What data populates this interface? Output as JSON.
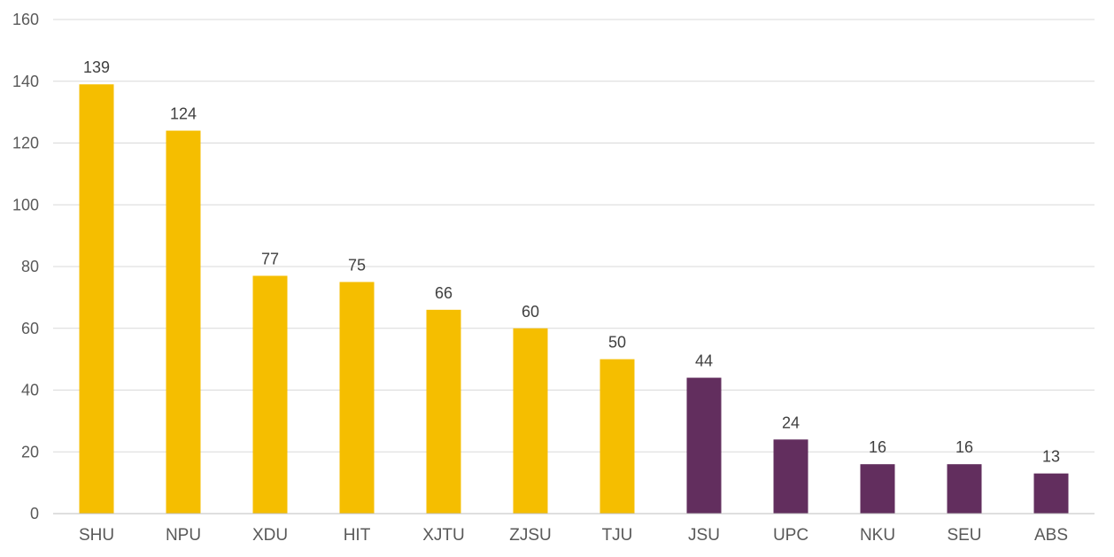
{
  "chart_data": {
    "type": "bar",
    "title": "",
    "xlabel": "",
    "ylabel": "",
    "ylim": [
      0,
      160
    ],
    "yticks": [
      0,
      20,
      40,
      60,
      80,
      100,
      120,
      140,
      160
    ],
    "grid": true,
    "legend": "none",
    "categories": [
      "SHU",
      "NPU",
      "XDU",
      "HIT",
      "XJTU",
      "ZJSU",
      "TJU",
      "JSU",
      "UPC",
      "NKU",
      "SEU",
      "ABS"
    ],
    "values": [
      139,
      124,
      77,
      75,
      66,
      60,
      50,
      44,
      24,
      16,
      16,
      13
    ],
    "bar_colors": [
      "#f5be00",
      "#f5be00",
      "#f5be00",
      "#f5be00",
      "#f5be00",
      "#f5be00",
      "#f5be00",
      "#622e5e",
      "#622e5e",
      "#622e5e",
      "#622e5e",
      "#622e5e"
    ]
  }
}
